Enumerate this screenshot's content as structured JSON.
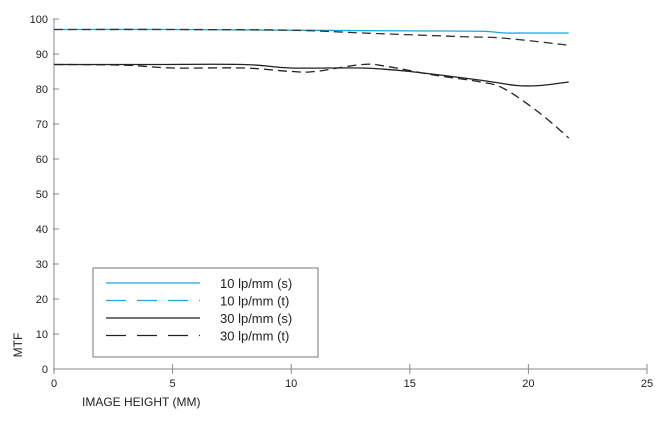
{
  "chart_data": {
    "type": "line",
    "title": "",
    "xlabel": "IMAGE HEIGHT (MM)",
    "ylabel": "MTF",
    "xlim": [
      0,
      25
    ],
    "ylim": [
      0,
      100
    ],
    "xticks": [
      0,
      5,
      10,
      15,
      20,
      25
    ],
    "yticks": [
      0,
      10,
      20,
      30,
      40,
      50,
      60,
      70,
      80,
      90,
      100
    ],
    "grid": false,
    "legend_position": "bottom-left",
    "series": [
      {
        "name": "10 lp/mm (s)",
        "color": "#1aa7e0",
        "dash": false,
        "x": [
          0,
          5,
          10,
          15,
          18,
          19,
          20,
          21.7
        ],
        "y": [
          97,
          97,
          96.8,
          96.6,
          96.5,
          96,
          96,
          96
        ]
      },
      {
        "name": "10 lp/mm (t)",
        "color": "#1aa7e0",
        "dash": true,
        "x": [
          0,
          5,
          10,
          13,
          17,
          19,
          21.7
        ],
        "y": [
          97,
          97,
          96.8,
          96,
          95,
          94.5,
          92.5
        ]
      },
      {
        "name": "30 lp/mm (s)",
        "color": "#222222",
        "dash": false,
        "x": [
          0,
          4,
          8,
          10,
          13,
          15,
          18,
          19.5,
          20.5,
          21.7
        ],
        "y": [
          87,
          87,
          87,
          86,
          86,
          85,
          82.5,
          81,
          81,
          82
        ]
      },
      {
        "name": "30 lp/mm (t)",
        "color": "#222222",
        "dash": true,
        "x": [
          0,
          3,
          5,
          8,
          10,
          11,
          13,
          14,
          16,
          18,
          19,
          20.5,
          21.7
        ],
        "y": [
          87,
          86.8,
          86,
          86,
          85,
          85,
          87,
          86.5,
          84,
          82,
          80,
          73,
          66
        ]
      }
    ]
  }
}
